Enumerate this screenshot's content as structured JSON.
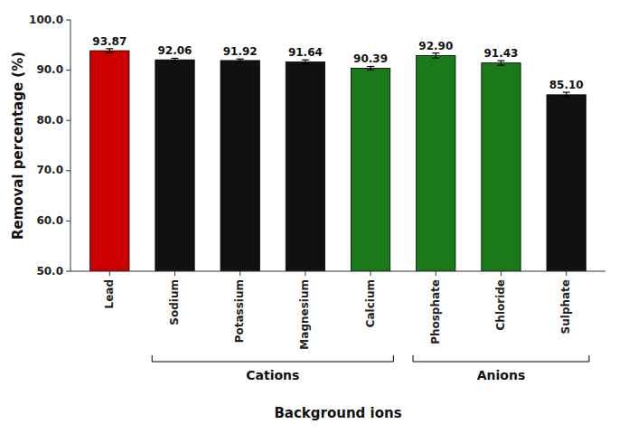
{
  "chart_data": {
    "type": "bar",
    "categories": [
      "Lead",
      "Sodium",
      "Potassium",
      "Magnesium",
      "Calcium",
      "Phosphate",
      "Chloride",
      "Sulphate"
    ],
    "values": [
      93.87,
      92.06,
      91.92,
      91.64,
      90.39,
      92.9,
      91.43,
      85.1
    ],
    "value_labels": [
      "93.87",
      "92.06",
      "91.92",
      "91.64",
      "90.39",
      "92.90",
      "91.43",
      "85.10"
    ],
    "errors": [
      0.4,
      0.3,
      0.3,
      0.4,
      0.35,
      0.5,
      0.45,
      0.5
    ],
    "colors": [
      "#cc0000",
      "#111111",
      "#111111",
      "#111111",
      "#1a7a1a",
      "#1a7a1a",
      "#1a7a1a",
      "#111111"
    ],
    "ylim": [
      50.0,
      100.0
    ],
    "yticks": [
      {
        "value": 50.0,
        "label": "50.0"
      },
      {
        "value": 60.0,
        "label": "60.0"
      },
      {
        "value": 70.0,
        "label": "70.0"
      },
      {
        "value": 80.0,
        "label": "80.0"
      },
      {
        "value": 90.0,
        "label": "90.0"
      },
      {
        "value": 100.0,
        "label": "100.0"
      }
    ],
    "y_label": "Removal percentage (%)",
    "x_label": "Background ions",
    "annotations": [
      {
        "text": "Cations",
        "from": "Sodium",
        "to": "Calcium"
      },
      {
        "text": "Anions",
        "from": "Phosphate",
        "to": "Sulphate"
      }
    ],
    "data_labels": true,
    "grid": false
  }
}
